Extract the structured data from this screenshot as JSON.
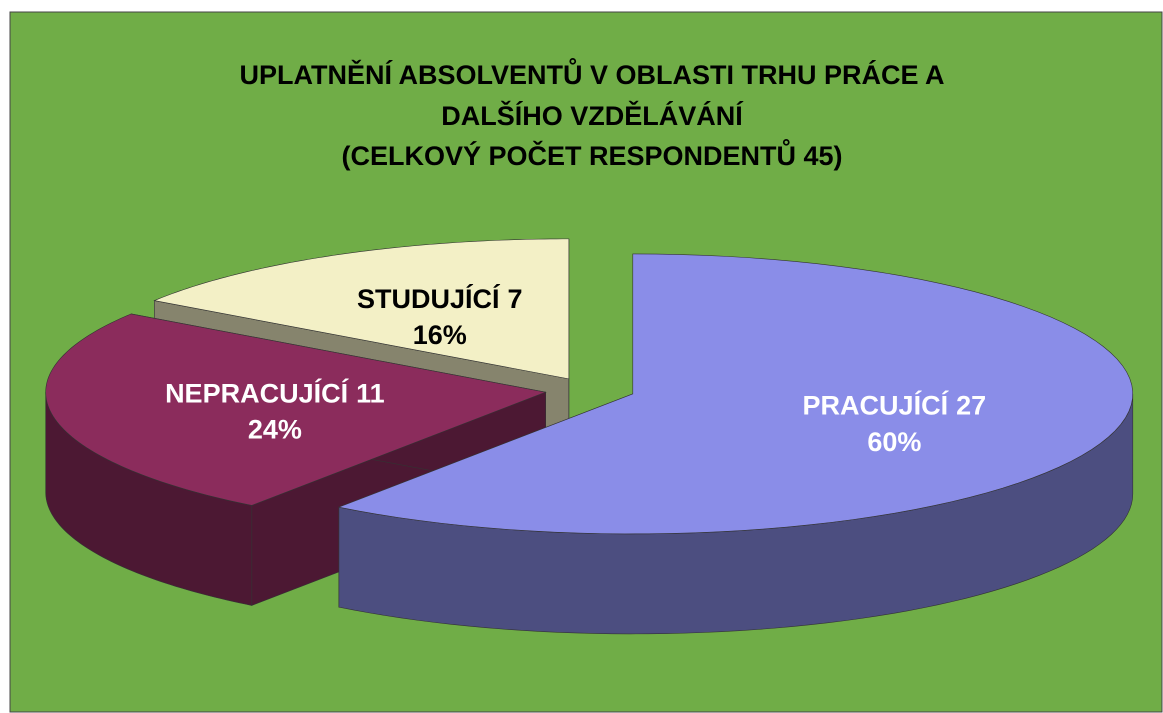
{
  "chart_data": {
    "type": "pie3d",
    "title": [
      "UPLATNĚNÍ ABSOLVENTŮ V OBLASTI TRHU PRÁCE A",
      "DALŠÍHO VZDĚLÁVÁNÍ",
      "(CELKOVÝ POČET RESPONDENTŮ 45)"
    ],
    "categories": [
      "PRACUJÍCÍ",
      "NEPRACUJÍCÍ",
      "STUDUJÍCÍ"
    ],
    "values": [
      27,
      11,
      7
    ],
    "percent_labels": [
      "60%",
      "24%",
      "16%"
    ],
    "colors": [
      "#8a8de8",
      "#8b2c5c",
      "#f3f0c6"
    ],
    "background": "#70ad47"
  }
}
